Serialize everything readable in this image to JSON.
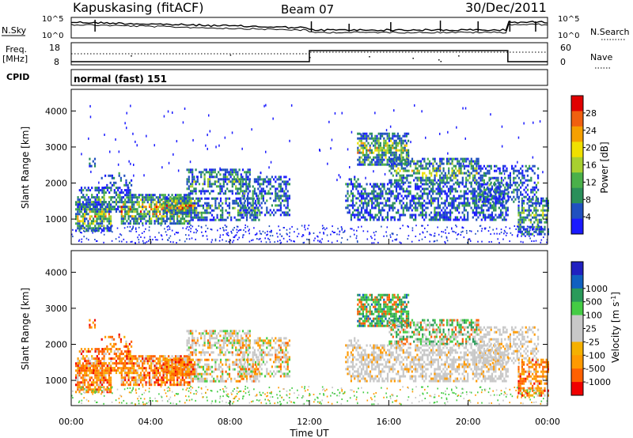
{
  "header": {
    "station": "Kapuskasing (fitACF)",
    "beam": "Beam 07",
    "date": "30/Dec/2011"
  },
  "noise_panel": {
    "left_label": "N.Sky",
    "right_label": "N.Search",
    "left_ticks": [
      "10^5",
      "10^0"
    ],
    "right_ticks": [
      "10^5",
      "10^0"
    ]
  },
  "freq_panel": {
    "left_label_1": "Freq.",
    "left_label_2": "[MHz]",
    "left_ticks": [
      "18",
      "8"
    ],
    "right_label": "Nave",
    "right_ticks": [
      "60",
      "0"
    ]
  },
  "cpid": {
    "label": "CPID",
    "value": "normal (fast) 151"
  },
  "colors": {
    "power": [
      "#1a1aff",
      "#2050c0",
      "#2a8f5a",
      "#4ab04a",
      "#a8d030",
      "#f0e000",
      "#f5a000",
      "#f06010",
      "#e00000"
    ],
    "velocity": [
      "#f00000",
      "#ff6000",
      "#ff9a00",
      "#f5b000",
      "#c8c8c8",
      "#c8c8c8",
      "#44cc44",
      "#2a9a5a",
      "#1060c0",
      "#2020c0"
    ]
  },
  "chart_data": [
    {
      "type": "heatmap",
      "name": "power",
      "ylabel": "Slant Range [km]",
      "yticks": [
        1000,
        2000,
        3000,
        4000
      ],
      "ylim": [
        300,
        4600
      ],
      "xlim": [
        0,
        24
      ],
      "colorbar_label": "Power [dB]",
      "colorbar_ticks": [
        4,
        8,
        12,
        16,
        20,
        24,
        28
      ],
      "colorbar_range": [
        0,
        32
      ]
    },
    {
      "type": "heatmap",
      "name": "velocity",
      "ylabel": "Slant Range [km]",
      "yticks": [
        1000,
        2000,
        3000,
        4000
      ],
      "ylim": [
        300,
        4600
      ],
      "xlim": [
        0,
        24
      ],
      "colorbar_label": "Velocity [m s^-1]",
      "colorbar_ticks": [
        "-1000",
        "-500",
        "-100",
        "-25",
        "25",
        "100",
        "500",
        "1000"
      ],
      "xlabel": "Time UT",
      "xticks": [
        "00:00",
        "04:00",
        "08:00",
        "12:00",
        "16:00",
        "20:00",
        "00:00"
      ]
    }
  ]
}
